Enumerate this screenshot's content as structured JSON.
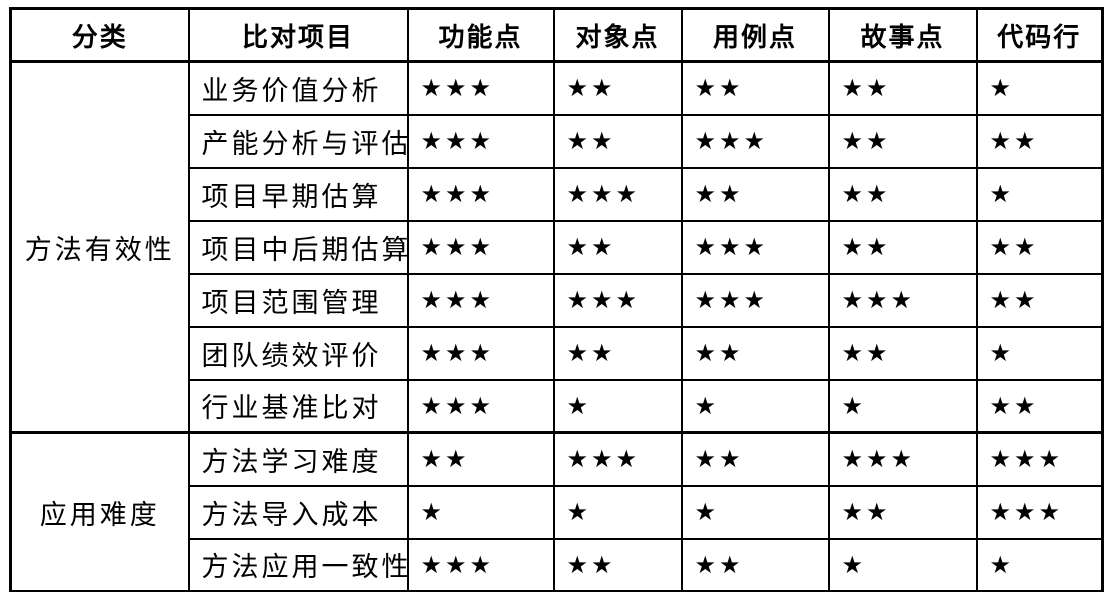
{
  "table": {
    "star_char": "★",
    "headers": [
      "分类",
      "比对项目",
      "功能点",
      "对象点",
      "用例点",
      "故事点",
      "代码行"
    ],
    "rating_columns": [
      "功能点",
      "对象点",
      "用例点",
      "故事点",
      "代码行"
    ],
    "max_rating": 3,
    "groups": [
      {
        "category": "方法有效性",
        "rows": [
          {
            "item": "业务价值分析",
            "ratings": [
              3,
              2,
              2,
              2,
              1
            ]
          },
          {
            "item": "产能分析与评估",
            "ratings": [
              3,
              2,
              3,
              2,
              2
            ]
          },
          {
            "item": "项目早期估算",
            "ratings": [
              3,
              3,
              2,
              2,
              1
            ]
          },
          {
            "item": "项目中后期估算",
            "ratings": [
              3,
              2,
              3,
              2,
              2
            ]
          },
          {
            "item": "项目范围管理",
            "ratings": [
              3,
              3,
              3,
              3,
              2
            ]
          },
          {
            "item": "团队绩效评价",
            "ratings": [
              3,
              2,
              2,
              2,
              1
            ]
          },
          {
            "item": "行业基准比对",
            "ratings": [
              3,
              1,
              1,
              1,
              2
            ]
          }
        ]
      },
      {
        "category": "应用难度",
        "rows": [
          {
            "item": "方法学习难度",
            "ratings": [
              2,
              3,
              2,
              3,
              3
            ]
          },
          {
            "item": "方法导入成本",
            "ratings": [
              1,
              1,
              1,
              2,
              3
            ]
          },
          {
            "item": "方法应用一致性",
            "ratings": [
              3,
              2,
              2,
              1,
              1
            ]
          }
        ]
      }
    ]
  },
  "colors": {
    "border": "#000000",
    "text": "#000000",
    "star": "#000000",
    "background": "#ffffff"
  }
}
